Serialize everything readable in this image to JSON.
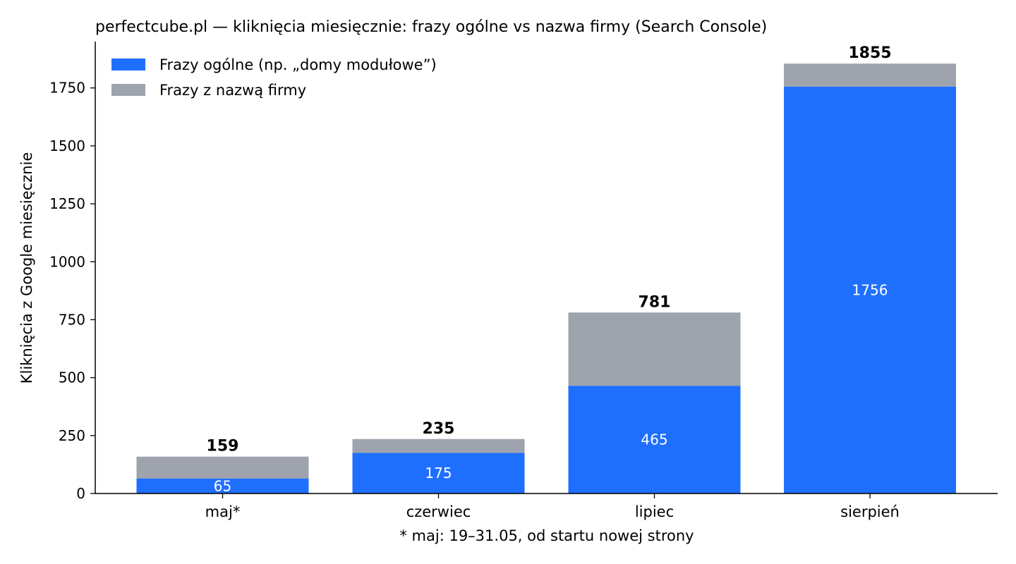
{
  "chart_data": {
    "type": "bar",
    "stacked": true,
    "title": "perfectcube.pl — kliknięcia miesięcznie: frazy ogólne vs nazwa firmy (Search Console)",
    "xlabel": "* maj: 19–31.05, od startu nowej strony",
    "ylabel": "Kliknięcia z Google miesięcznie",
    "categories": [
      "maj*",
      "czerwiec",
      "lipiec",
      "sierpień"
    ],
    "series": [
      {
        "name": "Frazy ogólne (np. „domy modułowe”)",
        "color": "#1f6fff",
        "values": [
          65,
          175,
          465,
          1756
        ]
      },
      {
        "name": "Frazy z nazwą firmy",
        "color": "#9ea3ad",
        "values": [
          94,
          60,
          316,
          99
        ]
      }
    ],
    "totals": [
      159,
      235,
      781,
      1855
    ],
    "segment_labels": [
      "65",
      "175",
      "465",
      "1756"
    ],
    "total_labels": [
      "159",
      "235",
      "781",
      "1855"
    ],
    "ylim": [
      0,
      1950
    ],
    "yticks": [
      0,
      250,
      500,
      750,
      1000,
      1250,
      1500,
      1750
    ],
    "grid": false,
    "legend_position": "top-left"
  }
}
